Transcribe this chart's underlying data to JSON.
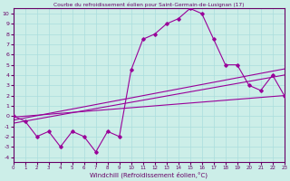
{
  "title": "Courbe du refroidissement éolien pour Saint-Germain-de-Lusignan (17)",
  "xlabel": "Windchill (Refroidissement éolien,°C)",
  "background_color": "#cceee8",
  "line_color": "#990099",
  "grid_color": "#aadddd",
  "xlim": [
    0,
    23
  ],
  "ylim": [
    -4.5,
    10.5
  ],
  "xticks": [
    0,
    1,
    2,
    3,
    4,
    5,
    6,
    7,
    8,
    9,
    10,
    11,
    12,
    13,
    14,
    15,
    16,
    17,
    18,
    19,
    20,
    21,
    22,
    23
  ],
  "yticks": [
    -4,
    -3,
    -2,
    -1,
    0,
    1,
    2,
    3,
    4,
    5,
    6,
    7,
    8,
    9,
    10
  ],
  "main_x": [
    0,
    1,
    2,
    3,
    4,
    5,
    6,
    7,
    8,
    9,
    10,
    11,
    12,
    13,
    14,
    15,
    16,
    17,
    18,
    19,
    20,
    21,
    22,
    23
  ],
  "main_y": [
    0,
    -0.5,
    -2.0,
    -1.5,
    -3.0,
    -1.5,
    -2.0,
    -3.5,
    -1.5,
    -2.0,
    4.5,
    7.5,
    8.0,
    9.0,
    9.5,
    10.5,
    10.0,
    7.5,
    5.0,
    5.0,
    3.0,
    2.5,
    4.0,
    2.0
  ],
  "band_x0": 0,
  "band_x1": 23,
  "band_top_y0": -0.1,
  "band_top_y1": 2.2,
  "band_mid_y0": -0.4,
  "band_mid_y1": 4.6,
  "band_bot_y0": -0.7,
  "band_bot_y1": 4.0,
  "flat_y0": -0.1,
  "flat_y1": 2.0,
  "tick_color": "#660066",
  "spine_color": "#660066",
  "tick_fontsize": 4.5,
  "xlabel_fontsize": 5.0,
  "title_fontsize": 4.2
}
